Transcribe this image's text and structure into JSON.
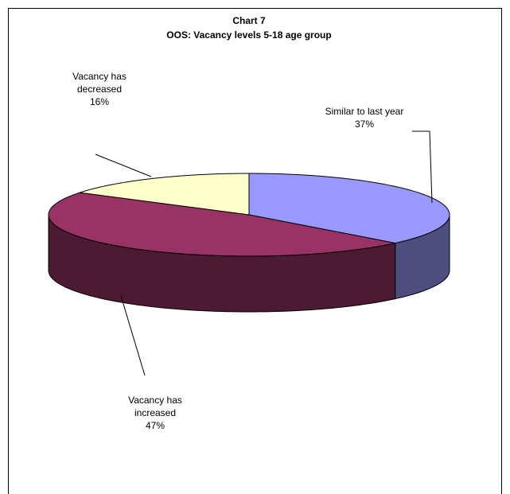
{
  "chart_data": {
    "type": "pie3d",
    "title": "Chart 7",
    "subtitle": "OOS: Vacancy levels 5-18 age group",
    "categories": [
      "Similar to last year",
      "Vacancy has increased",
      "Vacancy has decreased"
    ],
    "values": [
      37,
      47,
      16
    ],
    "value_labels": [
      "37%",
      "47%",
      "16%"
    ],
    "colors": [
      "#9999ff",
      "#993366",
      "#ffffcc"
    ],
    "side_colors": [
      "#4d4d80",
      "#4d1a33",
      "#80806a"
    ]
  }
}
